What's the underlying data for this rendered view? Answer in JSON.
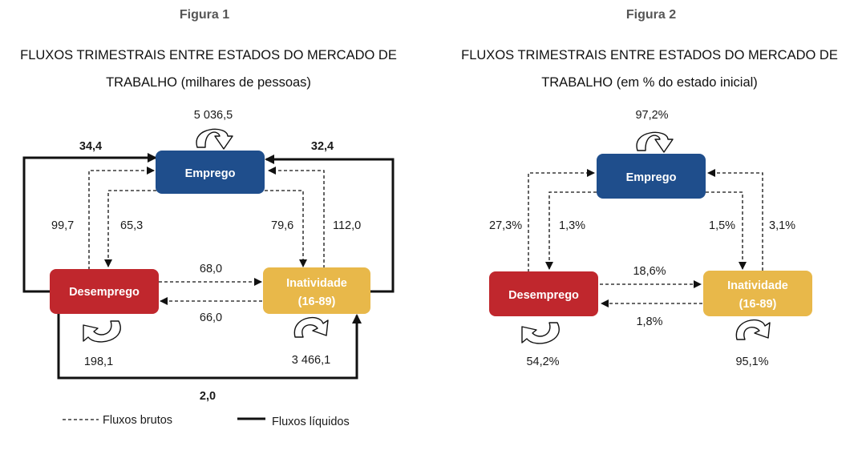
{
  "colors": {
    "emprego": "#1f4e8c",
    "desemprego": "#c0272d",
    "inatividade": "#e8b84a",
    "line": "#111111"
  },
  "figure1": {
    "label": "Figura 1",
    "title_line1": "FLUXOS TRIMESTRAIS ENTRE ESTADOS DO MERCADO DE",
    "title_line2": "TRABALHO (milhares de pessoas)",
    "nodes": {
      "emprego": "Emprego",
      "desemprego": "Desemprego",
      "inatividade_line1": "Inatividade",
      "inatividade_line2": "(16-89)"
    },
    "stay": {
      "emprego": "5 036,5",
      "desemprego": "198,1",
      "inatividade": "3 466,1"
    },
    "gross_flows": {
      "desemprego_to_emprego": "99,7",
      "emprego_to_desemprego": "65,3",
      "emprego_to_inatividade": "79,6",
      "inatividade_to_emprego": "112,0",
      "desemprego_to_inatividade": "68,0",
      "inatividade_to_desemprego": "66,0"
    },
    "net_flows": {
      "desemprego_emprego": "34,4",
      "inatividade_emprego": "32,4",
      "desemprego_inatividade": "2,0"
    },
    "legend": {
      "gross": "Fluxos brutos",
      "net": "Fluxos líquidos"
    }
  },
  "figure2": {
    "label": "Figura 2",
    "title_line1": "FLUXOS TRIMESTRAIS ENTRE ESTADOS DO MERCADO DE",
    "title_line2": "TRABALHO (em % do estado inicial)",
    "nodes": {
      "emprego": "Emprego",
      "desemprego": "Desemprego",
      "inatividade_line1": "Inatividade",
      "inatividade_line2": "(16-89)"
    },
    "stay": {
      "emprego": "97,2%",
      "desemprego": "54,2%",
      "inatividade": "95,1%"
    },
    "gross_flows": {
      "desemprego_to_emprego": "27,3%",
      "emprego_to_desemprego": "1,3%",
      "emprego_to_inatividade": "1,5%",
      "inatividade_to_emprego": "3,1%",
      "desemprego_to_inatividade": "18,6%",
      "inatividade_to_desemprego": "1,8%"
    }
  }
}
